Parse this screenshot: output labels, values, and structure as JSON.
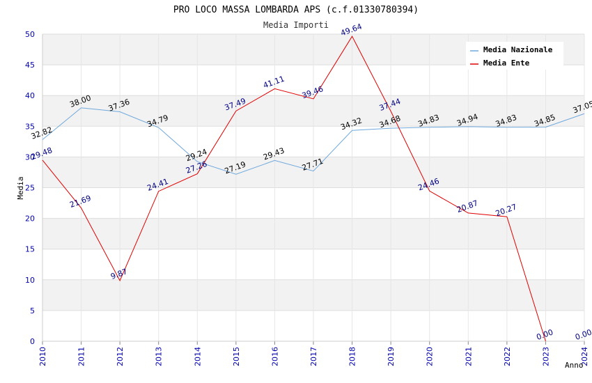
{
  "chart_data": {
    "type": "line",
    "title": "PRO LOCO MASSA LOMBARDA APS (c.f.01330780394)",
    "subtitle": "Media Importi",
    "xlabel": "Anno",
    "ylabel": "Media",
    "ylim": [
      0,
      50
    ],
    "yticks": [
      "0",
      "5",
      "10",
      "15",
      "20",
      "25",
      "30",
      "35",
      "40",
      "45",
      "50"
    ],
    "x": [
      "2010",
      "2011",
      "2012",
      "2013",
      "2014",
      "2015",
      "2016",
      "2017",
      "2018",
      "2019",
      "2020",
      "2021",
      "2022",
      "2023",
      "2024"
    ],
    "legend_position": "top-right",
    "grid": true,
    "series": [
      {
        "name": "Media Nazionale",
        "color": "#6fa8dc",
        "values": [
          32.82,
          38.0,
          37.36,
          34.79,
          29.24,
          27.19,
          29.43,
          27.71,
          34.32,
          34.68,
          34.83,
          34.94,
          34.83,
          34.85,
          37.05
        ],
        "labels": [
          "32.82",
          "38.00",
          "37.36",
          "34.79",
          "29.24",
          "27.19",
          "29.43",
          "27.71",
          "34.32",
          "34.68",
          "34.83",
          "34.94",
          "34.83",
          "34.85",
          "37.05"
        ]
      },
      {
        "name": "Media Ente",
        "color": "#e00000",
        "values": [
          29.48,
          21.69,
          9.87,
          24.41,
          27.26,
          37.49,
          41.11,
          39.46,
          49.64,
          37.44,
          24.46,
          20.87,
          20.27,
          0.0,
          0.0
        ],
        "labels": [
          "29.48",
          "21.69",
          "9.87",
          "24.41",
          "27.26",
          "37.49",
          "41.11",
          "39.46",
          "49.64",
          "37.44",
          "24.46",
          "20.87",
          "20.27",
          "0.00",
          "0.00"
        ],
        "drawn_points": 14
      }
    ]
  }
}
